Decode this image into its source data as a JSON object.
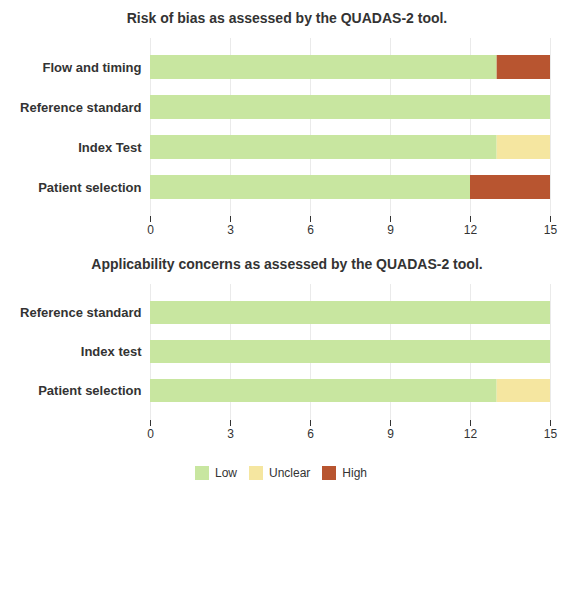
{
  "chart_data": [
    {
      "type": "bar",
      "orientation": "horizontal",
      "stacked": true,
      "title": "Risk of bias as assessed by the QUADAS-2 tool.",
      "categories": [
        "Flow and timing",
        "Reference standard",
        "Index Test",
        "Patient selection"
      ],
      "series": [
        {
          "name": "Low",
          "color": "#c8e6a0",
          "values": [
            13,
            15,
            13,
            12
          ]
        },
        {
          "name": "Unclear",
          "color": "#f5e6a0",
          "values": [
            0,
            0,
            2,
            0
          ]
        },
        {
          "name": "High",
          "color": "#b85530",
          "values": [
            2,
            0,
            0,
            3
          ]
        }
      ],
      "xlim": [
        0,
        15
      ],
      "xticks": [
        0,
        3,
        6,
        9,
        12,
        15
      ],
      "grid": true
    },
    {
      "type": "bar",
      "orientation": "horizontal",
      "stacked": true,
      "title": "Applicability concerns as assessed by the QUADAS-2 tool.",
      "categories": [
        "Reference standard",
        "Index test",
        "Patient selection"
      ],
      "series": [
        {
          "name": "Low",
          "color": "#c8e6a0",
          "values": [
            15,
            15,
            13
          ]
        },
        {
          "name": "Unclear",
          "color": "#f5e6a0",
          "values": [
            0,
            0,
            2
          ]
        },
        {
          "name": "High",
          "color": "#b85530",
          "values": [
            0,
            0,
            0
          ]
        }
      ],
      "xlim": [
        0,
        15
      ],
      "xticks": [
        0,
        3,
        6,
        9,
        12,
        15
      ],
      "grid": true,
      "legend": "bottom"
    }
  ]
}
